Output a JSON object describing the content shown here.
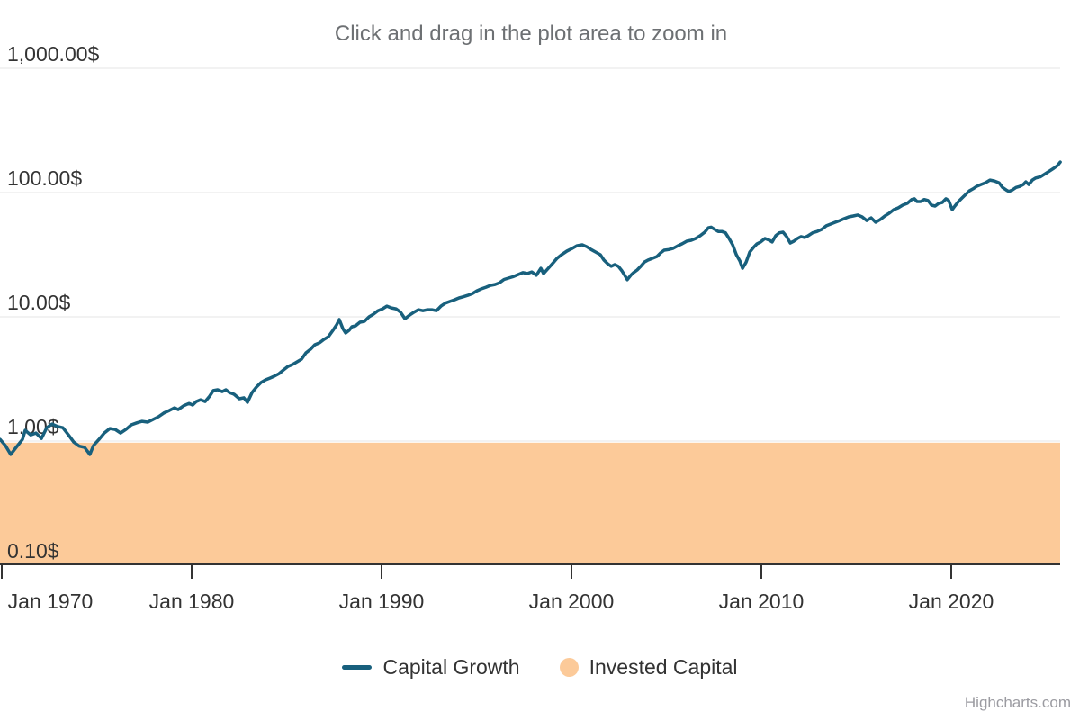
{
  "title": "Click and drag in the plot area to zoom in",
  "credit": "Highcharts.com",
  "colors": {
    "line": "#18607d",
    "area": "#fcca99",
    "gridline": "#e6e6e6",
    "axis": "#333333",
    "label": "#333333",
    "title": "#6d7073",
    "credit": "#9b9ba1",
    "background": "#ffffff"
  },
  "chart_data": {
    "type": "line",
    "title": "Click and drag in the plot area to zoom in",
    "grid": true,
    "legend_position": "bottom",
    "yaxis": {
      "scale": "log",
      "range": [
        0.1,
        1000
      ],
      "tick_values": [
        1000,
        100,
        10,
        1,
        0.1
      ],
      "tick_labels": [
        "1,000.00$",
        "100.00$",
        "10.00$",
        "1.00$",
        "0.10$"
      ]
    },
    "xaxis": {
      "range": [
        1969.9,
        2025.75
      ],
      "tick_values": [
        1970,
        1980,
        1990,
        2000,
        2010,
        2020
      ],
      "tick_labels": [
        "Jan 1970",
        "Jan 1980",
        "Jan 1990",
        "Jan 2000",
        "Jan 2010",
        "Jan 2020"
      ]
    },
    "legend": [
      {
        "label": "Capital Growth",
        "marker": "line",
        "color": "#18607d"
      },
      {
        "label": "Invested Capital",
        "marker": "circle",
        "color": "#fcca99"
      }
    ],
    "series": [
      {
        "name": "Capital Growth",
        "type": "line",
        "color": "#18607d",
        "units": "$",
        "points": [
          [
            1969.91,
            1.03
          ],
          [
            1970.19,
            0.92
          ],
          [
            1970.47,
            0.78
          ],
          [
            1970.76,
            0.89
          ],
          [
            1971.09,
            1.03
          ],
          [
            1971.23,
            1.22
          ],
          [
            1971.52,
            1.12
          ],
          [
            1971.8,
            1.16
          ],
          [
            1972.09,
            1.05
          ],
          [
            1972.37,
            1.28
          ],
          [
            1972.65,
            1.37
          ],
          [
            1972.94,
            1.31
          ],
          [
            1973.22,
            1.28
          ],
          [
            1973.51,
            1.12
          ],
          [
            1973.79,
            0.98
          ],
          [
            1974.08,
            0.91
          ],
          [
            1974.36,
            0.89
          ],
          [
            1974.64,
            0.78
          ],
          [
            1974.83,
            0.92
          ],
          [
            1975.12,
            1.03
          ],
          [
            1975.4,
            1.16
          ],
          [
            1975.69,
            1.26
          ],
          [
            1975.97,
            1.24
          ],
          [
            1976.26,
            1.16
          ],
          [
            1976.54,
            1.24
          ],
          [
            1976.82,
            1.35
          ],
          [
            1977.11,
            1.4
          ],
          [
            1977.39,
            1.44
          ],
          [
            1977.68,
            1.42
          ],
          [
            1977.96,
            1.49
          ],
          [
            1978.25,
            1.57
          ],
          [
            1978.53,
            1.68
          ],
          [
            1978.82,
            1.76
          ],
          [
            1979.1,
            1.85
          ],
          [
            1979.29,
            1.79
          ],
          [
            1979.57,
            1.92
          ],
          [
            1979.86,
            2.01
          ],
          [
            1980.05,
            1.95
          ],
          [
            1980.24,
            2.08
          ],
          [
            1980.47,
            2.15
          ],
          [
            1980.71,
            2.08
          ],
          [
            1980.95,
            2.3
          ],
          [
            1981.14,
            2.55
          ],
          [
            1981.37,
            2.59
          ],
          [
            1981.61,
            2.5
          ],
          [
            1981.8,
            2.59
          ],
          [
            1981.99,
            2.46
          ],
          [
            1982.23,
            2.38
          ],
          [
            1982.51,
            2.19
          ],
          [
            1982.75,
            2.23
          ],
          [
            1982.94,
            2.05
          ],
          [
            1983.18,
            2.46
          ],
          [
            1983.41,
            2.72
          ],
          [
            1983.65,
            2.96
          ],
          [
            1983.89,
            3.11
          ],
          [
            1984.12,
            3.21
          ],
          [
            1984.36,
            3.33
          ],
          [
            1984.6,
            3.49
          ],
          [
            1984.83,
            3.73
          ],
          [
            1985.07,
            3.99
          ],
          [
            1985.31,
            4.13
          ],
          [
            1985.55,
            4.34
          ],
          [
            1985.78,
            4.56
          ],
          [
            1986.02,
            5.13
          ],
          [
            1986.26,
            5.48
          ],
          [
            1986.49,
            5.96
          ],
          [
            1986.73,
            6.17
          ],
          [
            1986.97,
            6.59
          ],
          [
            1987.2,
            6.92
          ],
          [
            1987.44,
            7.78
          ],
          [
            1987.63,
            8.61
          ],
          [
            1987.77,
            9.51
          ],
          [
            1987.96,
            8.03
          ],
          [
            1988.11,
            7.41
          ],
          [
            1988.29,
            7.78
          ],
          [
            1988.44,
            8.32
          ],
          [
            1988.63,
            8.47
          ],
          [
            1988.86,
            9.05
          ],
          [
            1989.1,
            9.2
          ],
          [
            1989.34,
            10.0
          ],
          [
            1989.57,
            10.5
          ],
          [
            1989.81,
            11.2
          ],
          [
            1990.05,
            11.6
          ],
          [
            1990.28,
            12.2
          ],
          [
            1990.52,
            11.8
          ],
          [
            1990.76,
            11.6
          ],
          [
            1991.0,
            10.9
          ],
          [
            1991.23,
            9.66
          ],
          [
            1991.47,
            10.3
          ],
          [
            1991.71,
            10.9
          ],
          [
            1991.94,
            11.4
          ],
          [
            1992.18,
            11.2
          ],
          [
            1992.42,
            11.4
          ],
          [
            1992.65,
            11.4
          ],
          [
            1992.89,
            11.2
          ],
          [
            1993.13,
            12.2
          ],
          [
            1993.37,
            12.9
          ],
          [
            1993.6,
            13.3
          ],
          [
            1993.84,
            13.7
          ],
          [
            1994.08,
            14.2
          ],
          [
            1994.31,
            14.5
          ],
          [
            1994.55,
            14.9
          ],
          [
            1994.79,
            15.4
          ],
          [
            1995.02,
            16.2
          ],
          [
            1995.26,
            16.8
          ],
          [
            1995.5,
            17.3
          ],
          [
            1995.73,
            17.9
          ],
          [
            1995.97,
            18.2
          ],
          [
            1996.21,
            18.8
          ],
          [
            1996.45,
            20.0
          ],
          [
            1996.68,
            20.5
          ],
          [
            1996.92,
            21.0
          ],
          [
            1997.2,
            21.9
          ],
          [
            1997.44,
            22.7
          ],
          [
            1997.68,
            22.3
          ],
          [
            1997.91,
            23.0
          ],
          [
            1998.15,
            21.6
          ],
          [
            1998.39,
            24.6
          ],
          [
            1998.53,
            22.3
          ],
          [
            1998.72,
            24.0
          ],
          [
            1999.0,
            26.8
          ],
          [
            1999.24,
            29.6
          ],
          [
            1999.48,
            31.6
          ],
          [
            1999.76,
            33.8
          ],
          [
            2000.05,
            35.6
          ],
          [
            2000.28,
            37.3
          ],
          [
            2000.57,
            38.0
          ],
          [
            2000.81,
            36.6
          ],
          [
            2001.04,
            34.8
          ],
          [
            2001.28,
            33.2
          ],
          [
            2001.52,
            31.6
          ],
          [
            2001.71,
            28.6
          ],
          [
            2001.9,
            26.8
          ],
          [
            2002.09,
            25.5
          ],
          [
            2002.28,
            26.3
          ],
          [
            2002.47,
            25.5
          ],
          [
            2002.66,
            23.4
          ],
          [
            2002.8,
            21.6
          ],
          [
            2002.94,
            19.9
          ],
          [
            2003.13,
            21.6
          ],
          [
            2003.27,
            22.7
          ],
          [
            2003.46,
            23.8
          ],
          [
            2003.65,
            25.5
          ],
          [
            2003.84,
            27.6
          ],
          [
            2004.03,
            28.6
          ],
          [
            2004.27,
            29.6
          ],
          [
            2004.5,
            30.6
          ],
          [
            2004.69,
            32.7
          ],
          [
            2004.88,
            34.4
          ],
          [
            2005.12,
            34.8
          ],
          [
            2005.36,
            35.6
          ],
          [
            2005.6,
            37.3
          ],
          [
            2005.83,
            38.7
          ],
          [
            2006.07,
            40.6
          ],
          [
            2006.31,
            41.3
          ],
          [
            2006.54,
            42.7
          ],
          [
            2006.78,
            45.0
          ],
          [
            2007.02,
            48.0
          ],
          [
            2007.21,
            52.1
          ],
          [
            2007.35,
            52.7
          ],
          [
            2007.54,
            50.5
          ],
          [
            2007.73,
            48.6
          ],
          [
            2007.92,
            48.6
          ],
          [
            2008.11,
            47.4
          ],
          [
            2008.3,
            42.7
          ],
          [
            2008.49,
            38.0
          ],
          [
            2008.68,
            31.6
          ],
          [
            2008.87,
            28.1
          ],
          [
            2009.01,
            24.6
          ],
          [
            2009.2,
            27.6
          ],
          [
            2009.39,
            33.2
          ],
          [
            2009.58,
            36.1
          ],
          [
            2009.77,
            38.7
          ],
          [
            2009.96,
            40.0
          ],
          [
            2010.19,
            42.7
          ],
          [
            2010.43,
            41.3
          ],
          [
            2010.57,
            40.0
          ],
          [
            2010.76,
            45.0
          ],
          [
            2010.95,
            47.4
          ],
          [
            2011.14,
            48.0
          ],
          [
            2011.33,
            44.2
          ],
          [
            2011.52,
            39.3
          ],
          [
            2011.71,
            40.6
          ],
          [
            2011.9,
            42.7
          ],
          [
            2012.09,
            44.2
          ],
          [
            2012.28,
            43.5
          ],
          [
            2012.47,
            45.0
          ],
          [
            2012.7,
            47.4
          ],
          [
            2012.94,
            48.6
          ],
          [
            2013.18,
            50.5
          ],
          [
            2013.42,
            54.0
          ],
          [
            2013.65,
            55.8
          ],
          [
            2013.89,
            57.7
          ],
          [
            2014.13,
            59.5
          ],
          [
            2014.36,
            61.6
          ],
          [
            2014.6,
            63.7
          ],
          [
            2014.84,
            64.8
          ],
          [
            2015.07,
            66.0
          ],
          [
            2015.31,
            63.7
          ],
          [
            2015.55,
            59.5
          ],
          [
            2015.78,
            62.6
          ],
          [
            2016.02,
            57.7
          ],
          [
            2016.26,
            60.6
          ],
          [
            2016.5,
            64.8
          ],
          [
            2016.73,
            68.1
          ],
          [
            2016.97,
            72.8
          ],
          [
            2017.21,
            75.3
          ],
          [
            2017.44,
            79.2
          ],
          [
            2017.68,
            81.8
          ],
          [
            2017.92,
            88.0
          ],
          [
            2018.06,
            89.1
          ],
          [
            2018.2,
            84.7
          ],
          [
            2018.39,
            84.7
          ],
          [
            2018.58,
            88.0
          ],
          [
            2018.77,
            86.3
          ],
          [
            2018.96,
            79.2
          ],
          [
            2019.15,
            77.8
          ],
          [
            2019.34,
            81.8
          ],
          [
            2019.53,
            83.2
          ],
          [
            2019.72,
            89.1
          ],
          [
            2019.86,
            86.3
          ],
          [
            2020.05,
            72.8
          ],
          [
            2020.19,
            77.8
          ],
          [
            2020.38,
            84.7
          ],
          [
            2020.57,
            90.5
          ],
          [
            2020.76,
            96.6
          ],
          [
            2020.95,
            103
          ],
          [
            2021.14,
            107
          ],
          [
            2021.33,
            112
          ],
          [
            2021.56,
            116
          ],
          [
            2021.8,
            120
          ],
          [
            2022.04,
            126
          ],
          [
            2022.27,
            124
          ],
          [
            2022.51,
            120
          ],
          [
            2022.7,
            110
          ],
          [
            2022.89,
            105
          ],
          [
            2023.03,
            102
          ],
          [
            2023.22,
            105
          ],
          [
            2023.41,
            110
          ],
          [
            2023.6,
            112
          ],
          [
            2023.79,
            116
          ],
          [
            2023.93,
            122
          ],
          [
            2024.08,
            116
          ],
          [
            2024.27,
            126
          ],
          [
            2024.45,
            131
          ],
          [
            2024.69,
            134
          ],
          [
            2024.93,
            141
          ],
          [
            2025.17,
            149
          ],
          [
            2025.4,
            157
          ],
          [
            2025.59,
            165
          ],
          [
            2025.74,
            176
          ]
        ]
      },
      {
        "name": "Invested Capital",
        "type": "area",
        "color": "#fcca99",
        "units": "$",
        "value": 0.97
      }
    ]
  }
}
